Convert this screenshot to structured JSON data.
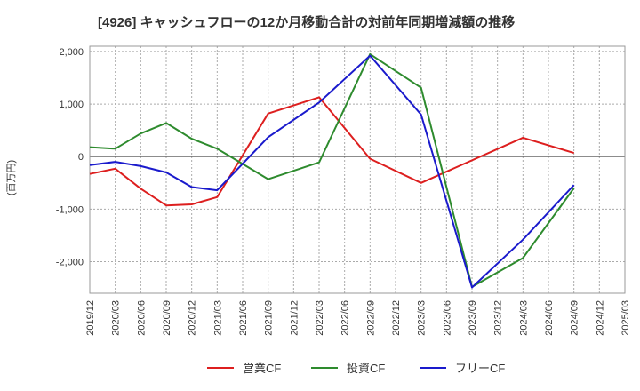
{
  "chart_data": {
    "type": "line",
    "title": "[4926]  キャッシュフローの12か月移動合計の対前年同期増減額の推移",
    "xlabel": "",
    "ylabel": "(百万円)",
    "x": [
      "2019/12",
      "2020/03",
      "2020/06",
      "2020/09",
      "2020/12",
      "2021/03",
      "2021/06",
      "2021/09",
      "2021/12",
      "2022/03",
      "2022/06",
      "2022/09",
      "2022/12",
      "2023/03",
      "2023/06",
      "2023/09",
      "2023/12",
      "2024/03",
      "2024/06",
      "2024/09",
      "2024/12",
      "2025/03"
    ],
    "ylim": [
      -2600,
      2100
    ],
    "yticks": [
      2000,
      1000,
      0,
      -1000,
      -2000
    ],
    "ytick_labels": [
      "2,000",
      "1,000",
      "0",
      "-1,000",
      "-2,000"
    ],
    "grid": true,
    "legend_position": "bottom",
    "series": [
      {
        "name": "営業CF",
        "color": "#dd1f1f",
        "values": [
          -330,
          -230,
          -610,
          -930,
          -910,
          -770,
          null,
          820,
          null,
          1130,
          null,
          -40,
          null,
          -500,
          null,
          null,
          null,
          360,
          null,
          70,
          null,
          null
        ],
        "connect_gaps": true
      },
      {
        "name": "投資CF",
        "color": "#2e8b2e",
        "values": [
          180,
          150,
          440,
          640,
          340,
          150,
          null,
          -430,
          null,
          -110,
          null,
          1950,
          null,
          1310,
          null,
          -2480,
          null,
          -1930,
          null,
          -600,
          null,
          null
        ],
        "connect_gaps": true
      },
      {
        "name": "フリーCF",
        "color": "#1a1acc",
        "values": [
          -160,
          -100,
          -180,
          -300,
          -580,
          -640,
          null,
          370,
          null,
          1030,
          null,
          1920,
          null,
          800,
          null,
          -2490,
          null,
          -1580,
          null,
          -540,
          null,
          null
        ],
        "connect_gaps": true
      }
    ]
  }
}
